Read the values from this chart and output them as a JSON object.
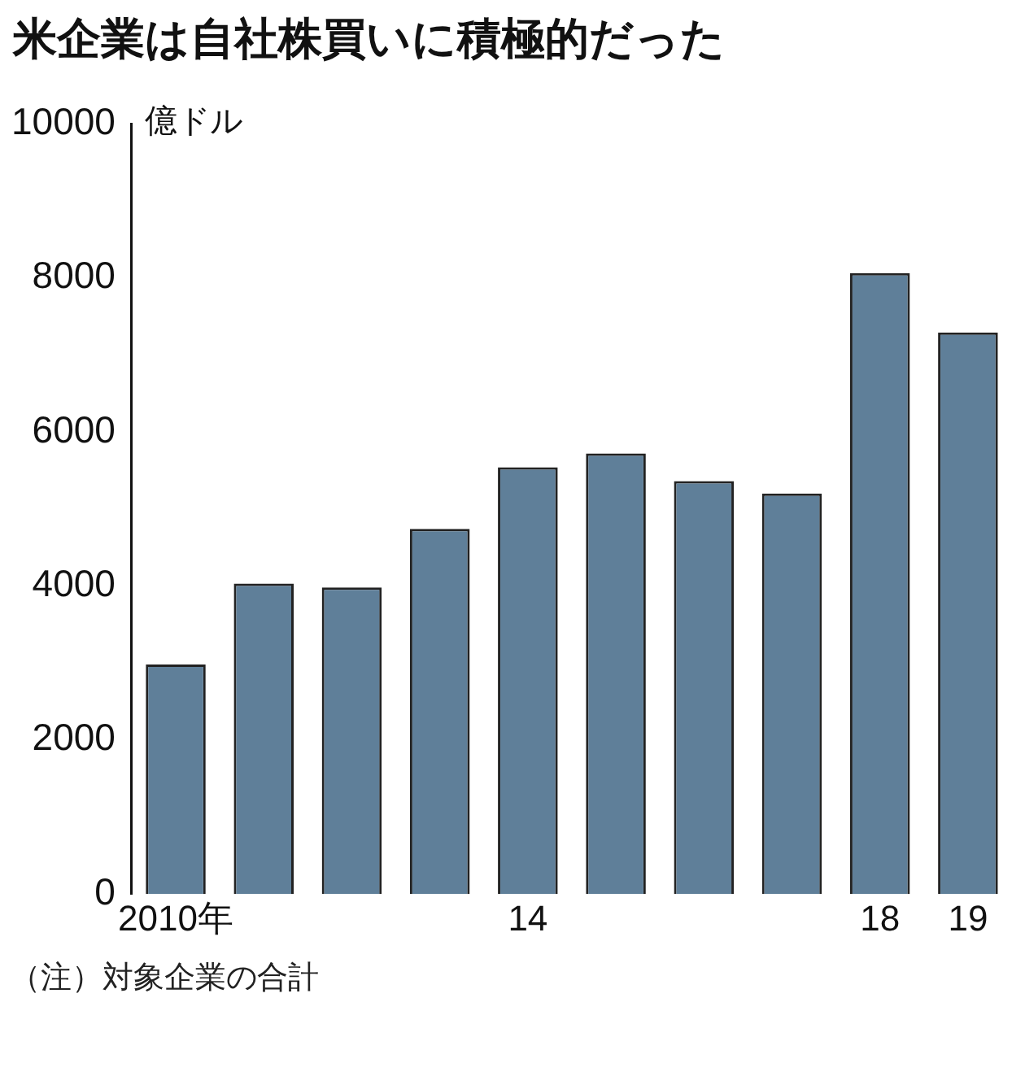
{
  "chart_data": {
    "type": "bar",
    "title": "米企業は自社株買いに積極的だった",
    "ylabel": "億ドル",
    "categories": [
      "2010年",
      null,
      null,
      null,
      "14",
      null,
      null,
      null,
      "18",
      "19"
    ],
    "values": [
      2980,
      4030,
      3980,
      4740,
      5540,
      5720,
      5360,
      5200,
      8060,
      7290
    ],
    "color": "#5f7f99",
    "ylim": [
      0,
      10000
    ],
    "yticks": [
      0,
      2000,
      4000,
      6000,
      8000,
      10000
    ],
    "grid": false,
    "legend": false,
    "annotations": [
      "（注）対象企業の合計"
    ]
  }
}
